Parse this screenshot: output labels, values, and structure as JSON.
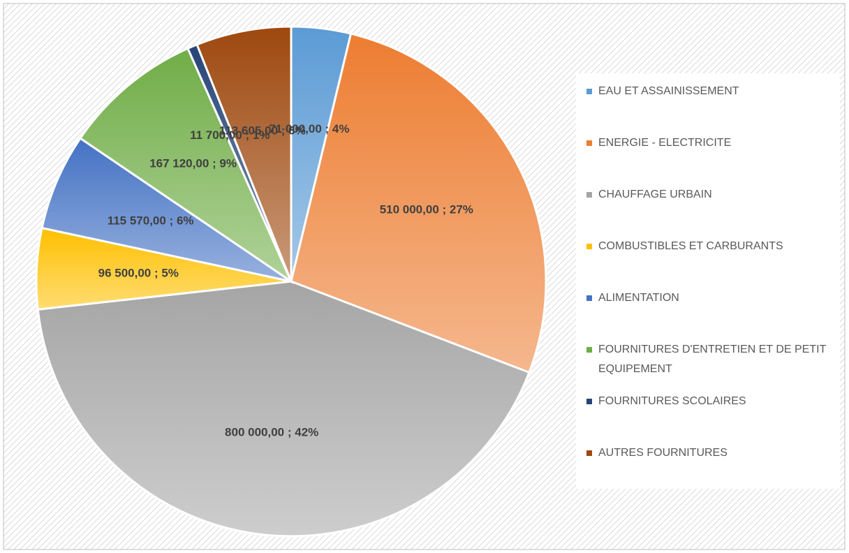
{
  "chart_data": {
    "type": "pie",
    "categories": [
      "EAU ET ASSAINISSEMENT",
      "ENERGIE - ELECTRICITE",
      "CHAUFFAGE URBAIN",
      "COMBUSTIBLES ET CARBURANTS",
      "ALIMENTATION",
      "FOURNITURES D'ENTRETIEN ET DE PETIT EQUIPEMENT",
      "FOURNITURES SCOLAIRES",
      "AUTRES FOURNITURES"
    ],
    "values": [
      71000,
      510000,
      800000,
      96500,
      115570,
      167120,
      11700,
      113605
    ],
    "value_labels": [
      "71 000,00 ; 4%",
      "510 000,00 ; 27%",
      "800 000,00 ; 42%",
      "96 500,00 ; 5%",
      "115 570,00 ; 6%",
      "167 120,00 ; 9%",
      "11 700,00 ; 1%",
      "113 605,00 ; 6%"
    ],
    "colors": [
      "#5b9bd5",
      "#ed7d31",
      "#a5a5a5",
      "#ffc000",
      "#4472c4",
      "#70ad47",
      "#264478",
      "#9e480e"
    ],
    "legend": "right"
  }
}
